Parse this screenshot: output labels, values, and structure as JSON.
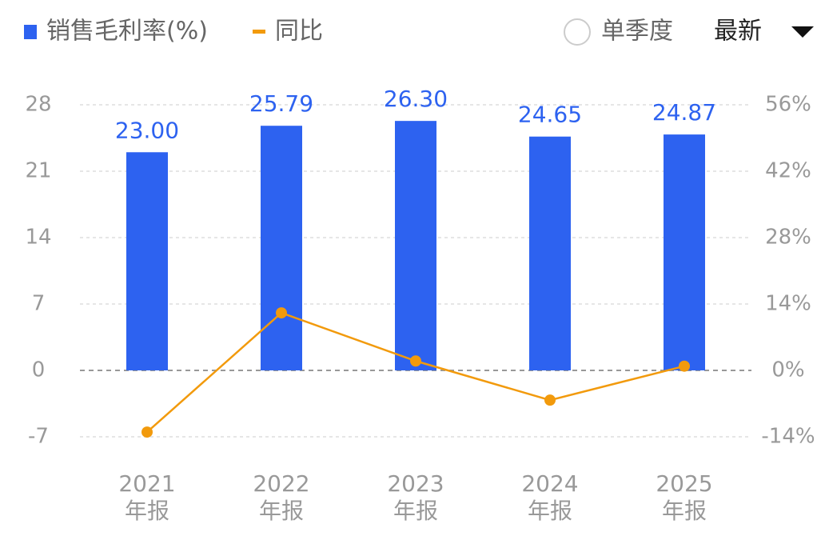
{
  "chart_data": {
    "type": "bar",
    "categories": [
      "2021\n年报",
      "2022\n年报",
      "2023\n年报",
      "2024\n年报",
      "2025\n年报"
    ],
    "series": [
      {
        "name": "销售毛利率(%)",
        "type": "bar",
        "color": "#2d62f0",
        "values": [
          23.0,
          25.79,
          26.3,
          24.65,
          24.87
        ],
        "value_labels": [
          "23.00",
          "25.79",
          "26.30",
          "24.65",
          "24.87"
        ]
      },
      {
        "name": "同比",
        "type": "line",
        "axis": "y2",
        "color": "#f29a0c",
        "values": [
          -13,
          12.13,
          1.98,
          -6.27,
          0.89
        ]
      }
    ],
    "ylim": [
      -7,
      28
    ],
    "yticks": [
      -7,
      0,
      7,
      14,
      21,
      28
    ],
    "y2lim": [
      -14,
      56
    ],
    "y2ticks": [
      {
        "value": -14,
        "label": "-14%"
      },
      {
        "value": 0,
        "label": "0%"
      },
      {
        "value": 14,
        "label": "14%"
      },
      {
        "value": 28,
        "label": "28%"
      },
      {
        "value": 42,
        "label": "42%"
      },
      {
        "value": 56,
        "label": "56%"
      }
    ],
    "grid": true
  },
  "controls": {
    "period_toggle": "单季度",
    "period_select": "最新"
  }
}
